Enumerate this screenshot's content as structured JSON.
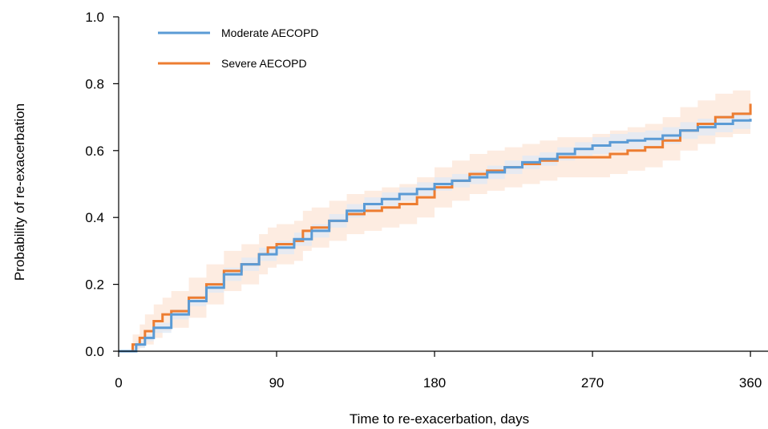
{
  "colors": {
    "moderate": "#5b9bd5",
    "moderate_band": "#dfeaf6",
    "severe": "#ed7d31",
    "severe_band": "#fde9dc",
    "axis": "#000000"
  },
  "chart_data": {
    "type": "line",
    "title": "",
    "xlabel": "Time to re-exacerbation, days",
    "ylabel": "Probability of re-exacerbation",
    "xlim": [
      0,
      370
    ],
    "ylim": [
      0,
      1.0
    ],
    "x_ticks": [
      0,
      90,
      180,
      270,
      360
    ],
    "x_tick_labels": [
      "0",
      "90",
      "180",
      "270",
      "360"
    ],
    "y_ticks": [
      0.0,
      0.2,
      0.4,
      0.6,
      0.8,
      1.0
    ],
    "y_tick_labels": [
      "0.0",
      "0.2",
      "0.4",
      "0.6",
      "0.8",
      "1.0"
    ],
    "grid": false,
    "legend_position": "top-left",
    "series": [
      {
        "name": "Moderate AECOPD",
        "color": "#5b9bd5",
        "band_color": "#dfeaf6",
        "x": [
          0,
          7,
          10,
          15,
          20,
          30,
          40,
          50,
          60,
          70,
          80,
          90,
          100,
          110,
          120,
          130,
          140,
          150,
          160,
          170,
          180,
          190,
          200,
          210,
          220,
          230,
          240,
          250,
          260,
          270,
          280,
          290,
          300,
          310,
          320,
          330,
          340,
          350,
          360
        ],
        "y": [
          0.0,
          0.0,
          0.02,
          0.04,
          0.07,
          0.11,
          0.15,
          0.19,
          0.23,
          0.26,
          0.29,
          0.31,
          0.335,
          0.36,
          0.39,
          0.42,
          0.44,
          0.455,
          0.47,
          0.485,
          0.5,
          0.51,
          0.52,
          0.535,
          0.55,
          0.565,
          0.575,
          0.59,
          0.605,
          0.615,
          0.625,
          0.63,
          0.635,
          0.645,
          0.66,
          0.67,
          0.68,
          0.69,
          0.695
        ],
        "lower": [
          0.0,
          0.0,
          0.01,
          0.03,
          0.055,
          0.095,
          0.135,
          0.175,
          0.21,
          0.24,
          0.27,
          0.29,
          0.315,
          0.34,
          0.37,
          0.4,
          0.42,
          0.435,
          0.45,
          0.465,
          0.48,
          0.49,
          0.5,
          0.515,
          0.53,
          0.545,
          0.555,
          0.57,
          0.585,
          0.59,
          0.6,
          0.605,
          0.61,
          0.62,
          0.635,
          0.645,
          0.655,
          0.665,
          0.67
        ],
        "upper": [
          0.0,
          0.0,
          0.03,
          0.05,
          0.085,
          0.125,
          0.165,
          0.205,
          0.25,
          0.28,
          0.31,
          0.33,
          0.355,
          0.38,
          0.41,
          0.44,
          0.46,
          0.475,
          0.49,
          0.505,
          0.52,
          0.53,
          0.54,
          0.555,
          0.57,
          0.585,
          0.595,
          0.61,
          0.625,
          0.64,
          0.65,
          0.655,
          0.66,
          0.67,
          0.685,
          0.695,
          0.705,
          0.715,
          0.72
        ]
      },
      {
        "name": "Severe AECOPD",
        "color": "#ed7d31",
        "band_color": "#fde9dc",
        "x": [
          0,
          5,
          8,
          12,
          15,
          20,
          25,
          30,
          40,
          50,
          60,
          70,
          80,
          85,
          90,
          95,
          100,
          105,
          110,
          120,
          130,
          140,
          150,
          160,
          170,
          180,
          190,
          200,
          210,
          220,
          230,
          240,
          250,
          260,
          270,
          280,
          290,
          300,
          310,
          320,
          330,
          340,
          350,
          360
        ],
        "y": [
          0.0,
          0.0,
          0.02,
          0.04,
          0.06,
          0.09,
          0.11,
          0.12,
          0.16,
          0.2,
          0.24,
          0.26,
          0.29,
          0.31,
          0.32,
          0.32,
          0.33,
          0.36,
          0.37,
          0.39,
          0.41,
          0.42,
          0.43,
          0.44,
          0.46,
          0.49,
          0.51,
          0.53,
          0.54,
          0.55,
          0.56,
          0.57,
          0.58,
          0.58,
          0.58,
          0.59,
          0.6,
          0.61,
          0.63,
          0.66,
          0.68,
          0.7,
          0.71,
          0.74
        ],
        "lower": [
          0.0,
          0.0,
          0.0,
          0.01,
          0.02,
          0.04,
          0.06,
          0.07,
          0.1,
          0.14,
          0.18,
          0.2,
          0.23,
          0.25,
          0.26,
          0.26,
          0.27,
          0.3,
          0.31,
          0.33,
          0.35,
          0.36,
          0.37,
          0.38,
          0.4,
          0.43,
          0.45,
          0.47,
          0.48,
          0.49,
          0.5,
          0.51,
          0.52,
          0.52,
          0.52,
          0.53,
          0.54,
          0.55,
          0.57,
          0.6,
          0.62,
          0.64,
          0.65,
          0.68
        ],
        "upper": [
          0.0,
          0.0,
          0.05,
          0.08,
          0.11,
          0.14,
          0.16,
          0.18,
          0.22,
          0.26,
          0.3,
          0.32,
          0.35,
          0.37,
          0.38,
          0.38,
          0.39,
          0.42,
          0.43,
          0.45,
          0.47,
          0.48,
          0.49,
          0.5,
          0.52,
          0.55,
          0.57,
          0.59,
          0.6,
          0.61,
          0.62,
          0.63,
          0.64,
          0.64,
          0.65,
          0.66,
          0.67,
          0.68,
          0.7,
          0.73,
          0.75,
          0.77,
          0.78,
          0.8
        ]
      }
    ]
  }
}
